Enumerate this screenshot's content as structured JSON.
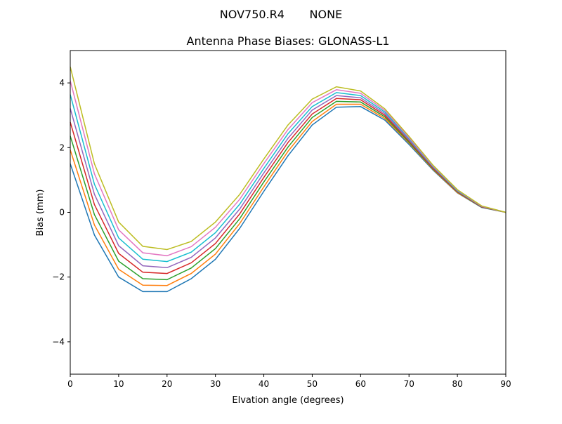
{
  "chart_data": {
    "type": "line",
    "suptitle": "NOV750.R4       NONE",
    "title": "Antenna Phase Biases: GLONASS-L1",
    "xlabel": "Elvation angle (degrees)",
    "ylabel": "Bias (mm)",
    "xlim": [
      0,
      90
    ],
    "ylim": [
      -5,
      5
    ],
    "xticks": [
      0,
      10,
      20,
      30,
      40,
      50,
      60,
      70,
      80,
      90
    ],
    "yticks": [
      -4,
      -2,
      0,
      2,
      4
    ],
    "ytick_labels": [
      "−4",
      "−2",
      "0",
      "2",
      "4"
    ],
    "grid": false,
    "legend": "none",
    "x": [
      0,
      5,
      10,
      15,
      20,
      25,
      30,
      35,
      40,
      45,
      50,
      55,
      60,
      65,
      70,
      75,
      80,
      85,
      90
    ],
    "series": [
      {
        "color": "#1f77b4",
        "values": [
          1.5,
          -0.7,
          -2.0,
          -2.45,
          -2.45,
          -2.05,
          -1.45,
          -0.5,
          0.65,
          1.75,
          2.7,
          3.25,
          3.27,
          2.85,
          2.1,
          1.3,
          0.6,
          0.15,
          0
        ]
      },
      {
        "color": "#ff7f0e",
        "values": [
          1.93,
          -0.39,
          -1.76,
          -2.25,
          -2.26,
          -1.89,
          -1.29,
          -0.35,
          0.79,
          1.89,
          2.81,
          3.34,
          3.34,
          2.9,
          2.14,
          1.32,
          0.61,
          0.16,
          0
        ]
      },
      {
        "color": "#2ca02c",
        "values": [
          2.36,
          -0.07,
          -1.51,
          -2.05,
          -2.08,
          -1.72,
          -1.12,
          -0.2,
          0.94,
          2.02,
          2.93,
          3.43,
          3.41,
          2.95,
          2.17,
          1.34,
          0.63,
          0.16,
          0
        ]
      },
      {
        "color": "#d62728",
        "values": [
          2.79,
          0.24,
          -1.27,
          -1.85,
          -1.89,
          -1.56,
          -0.96,
          -0.05,
          1.08,
          2.16,
          3.04,
          3.52,
          3.48,
          3.0,
          2.21,
          1.36,
          0.64,
          0.17,
          0
        ]
      },
      {
        "color": "#9467bd",
        "values": [
          3.21,
          0.56,
          -1.03,
          -1.65,
          -1.71,
          -1.39,
          -0.79,
          0.1,
          1.22,
          2.29,
          3.16,
          3.61,
          3.54,
          3.05,
          2.24,
          1.39,
          0.66,
          0.18,
          0
        ]
      },
      {
        "color": "#17becf",
        "values": [
          3.64,
          0.87,
          -0.79,
          -1.45,
          -1.52,
          -1.23,
          -0.63,
          0.25,
          1.36,
          2.43,
          3.27,
          3.7,
          3.61,
          3.1,
          2.28,
          1.41,
          0.67,
          0.19,
          0
        ]
      },
      {
        "color": "#e377c2",
        "values": [
          4.07,
          1.19,
          -0.54,
          -1.25,
          -1.34,
          -1.06,
          -0.46,
          0.4,
          1.51,
          2.56,
          3.39,
          3.79,
          3.68,
          3.15,
          2.31,
          1.43,
          0.69,
          0.19,
          0
        ]
      },
      {
        "color": "#bcbd22",
        "values": [
          4.5,
          1.5,
          -0.3,
          -1.05,
          -1.15,
          -0.9,
          -0.3,
          0.55,
          1.65,
          2.7,
          3.5,
          3.88,
          3.75,
          3.2,
          2.35,
          1.45,
          0.7,
          0.2,
          0
        ]
      }
    ]
  }
}
